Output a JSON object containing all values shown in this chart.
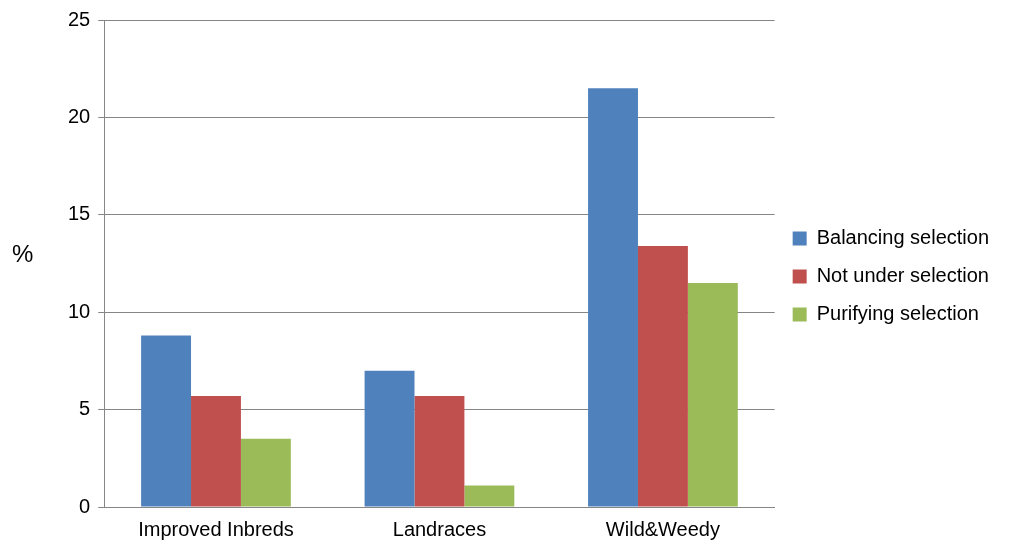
{
  "chart_data": {
    "type": "bar",
    "ylabel": "%",
    "categories": [
      "Improved Inbreds",
      "Landraces",
      "Wild&Weedy"
    ],
    "series": [
      {
        "name": "Balancing selection",
        "color": "#4f81bd",
        "values": [
          8.8,
          7.0,
          21.5
        ]
      },
      {
        "name": "Not under selection",
        "color": "#c0504d",
        "values": [
          5.7,
          5.7,
          13.4
        ]
      },
      {
        "name": "Purifying selection",
        "color": "#9bbb59",
        "values": [
          3.5,
          1.1,
          11.5
        ]
      }
    ],
    "ylim": [
      0,
      25
    ],
    "yticks": [
      0,
      5,
      10,
      15,
      20,
      25
    ],
    "grid": "y",
    "legend": "right"
  }
}
